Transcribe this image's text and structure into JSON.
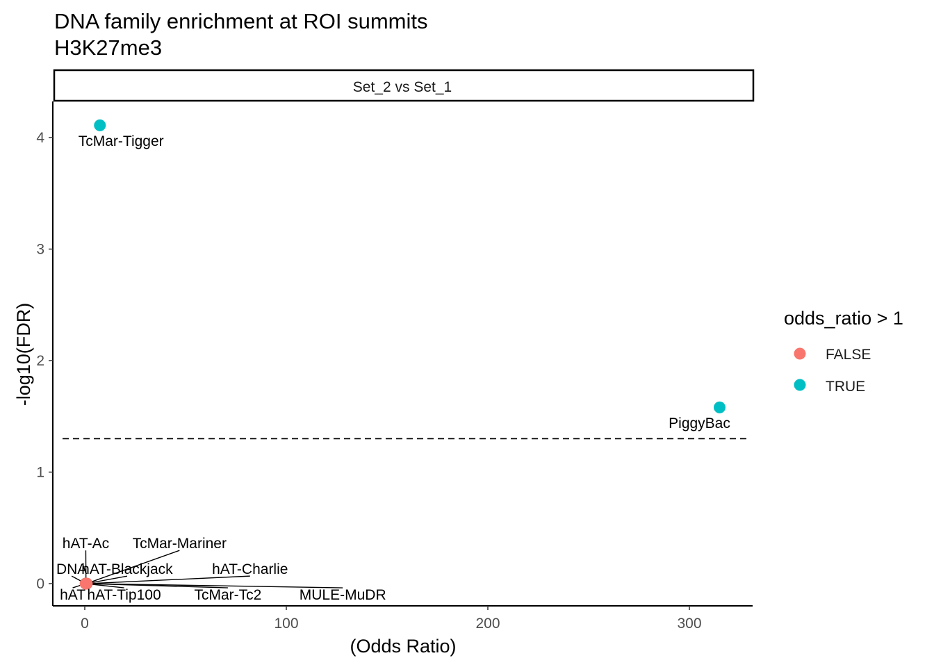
{
  "chart_data": {
    "type": "scatter",
    "title": "DNA family enrichment at ROI summits",
    "subtitle": "H3K27me3",
    "facet_label": "Set_2 vs Set_1",
    "xlabel": "(Odds Ratio)",
    "ylabel": "-log10(FDR)",
    "xlim": [
      -15,
      330
    ],
    "ylim": [
      -0.2,
      4.3
    ],
    "x_ticks": [
      0,
      100,
      200,
      300
    ],
    "y_ticks": [
      0,
      1,
      2,
      3,
      4
    ],
    "threshold_y": 1.3,
    "legend": {
      "title": "odds_ratio > 1",
      "placement": "right",
      "entries": [
        {
          "label": "FALSE",
          "color": "#F8766D"
        },
        {
          "label": "TRUE",
          "color": "#00BFC4"
        }
      ]
    },
    "points": [
      {
        "label": "TcMar-Tigger",
        "x": 7.5,
        "y": 4.11,
        "group": "TRUE",
        "label_x": 18,
        "label_y": 3.97
      },
      {
        "label": "PiggyBac",
        "x": 315,
        "y": 1.58,
        "group": "TRUE",
        "label_x": 305,
        "label_y": 1.44
      },
      {
        "label": "hAT-Ac",
        "x": 0.6,
        "y": 0.0,
        "group": "FALSE",
        "label_x": 0.5,
        "label_y": 0.36
      },
      {
        "label": "TcMar-Mariner",
        "x": 0.8,
        "y": 0.0,
        "group": "FALSE",
        "label_x": 47,
        "label_y": 0.36
      },
      {
        "label": "DNA",
        "x": 0.5,
        "y": 0.0,
        "group": "FALSE",
        "label_x": -6.5,
        "label_y": 0.13
      },
      {
        "label": "hAT-Blackjack",
        "x": 0.7,
        "y": 0.0,
        "group": "FALSE",
        "label_x": 21,
        "label_y": 0.13
      },
      {
        "label": "hAT-Charlie",
        "x": 0.9,
        "y": 0.0,
        "group": "FALSE",
        "label_x": 82,
        "label_y": 0.13
      },
      {
        "label": "hAT",
        "x": 0.4,
        "y": 0.0,
        "group": "FALSE",
        "label_x": -6,
        "label_y": -0.1
      },
      {
        "label": "hAT-Tip100",
        "x": 0.6,
        "y": 0.0,
        "group": "FALSE",
        "label_x": 19.5,
        "label_y": -0.1
      },
      {
        "label": "TcMar-Tc2",
        "x": 0.8,
        "y": 0.0,
        "group": "FALSE",
        "label_x": 71,
        "label_y": -0.1
      },
      {
        "label": "MULE-MuDR",
        "x": 1.0,
        "y": 0.0,
        "group": "FALSE",
        "label_x": 128,
        "label_y": -0.1
      }
    ]
  }
}
